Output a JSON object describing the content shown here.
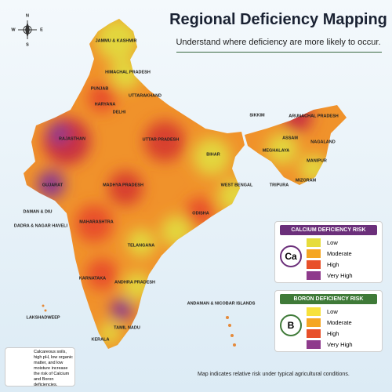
{
  "header": {
    "title": "Regional Deficiency Mapping",
    "subtitle": "Understand where deficiency are more likely to occur."
  },
  "compass": {
    "n": "N",
    "s": "S",
    "e": "E",
    "w": "W"
  },
  "map": {
    "labels": [
      "JAMMU & KASHMIR",
      "HIMACHAL PRADESH",
      "PUNJAB",
      "UTTARAKHAND",
      "HARYANA",
      "DELHI",
      "RAJASTHAN",
      "UTTAR PRADESH",
      "SIKKIM",
      "ARUNACHAL PRADESH",
      "ASSAM",
      "NAGALAND",
      "MEGHALAYA",
      "MANIPUR",
      "BIHAR",
      "GUJARAT",
      "MADHYA PRADESH",
      "WEST BENGAL",
      "TRIPURA",
      "MIZORAM",
      "DAMAN & DIU",
      "DADRA & NAGAR HAVELI",
      "ODISHA",
      "MAHARASHTRA",
      "TELANGANA",
      "KARNATAKA",
      "ANDHRA PRADESH",
      "ANDAMAN & NICOBAR ISLANDS",
      "LAKSHADWEEP",
      "TAMIL NADU",
      "KERALA"
    ]
  },
  "legends": [
    {
      "title": "CALCIUM DEFICIENCY RISK",
      "symbol": "Ca",
      "levels": [
        {
          "label": "Low",
          "color": "#e6dc3c"
        },
        {
          "label": "Moderate",
          "color": "#f5a623"
        },
        {
          "label": "High",
          "color": "#e8502a"
        },
        {
          "label": "Very High",
          "color": "#8e3a8c"
        }
      ]
    },
    {
      "title": "BORON DEFICIENCY RISK",
      "symbol": "B",
      "levels": [
        {
          "label": "Low",
          "color": "#f7e13b"
        },
        {
          "label": "Moderate",
          "color": "#f5a623"
        },
        {
          "label": "High",
          "color": "#e8502a"
        },
        {
          "label": "Very High",
          "color": "#8e3a8c"
        }
      ]
    }
  ],
  "footnote": "Calcareous soils, high pH, low organic matter, and low moisture increase the risk of Calcium and Boron deficiencies.",
  "note": "Map indicates relative risk under typical agricultural conditions."
}
